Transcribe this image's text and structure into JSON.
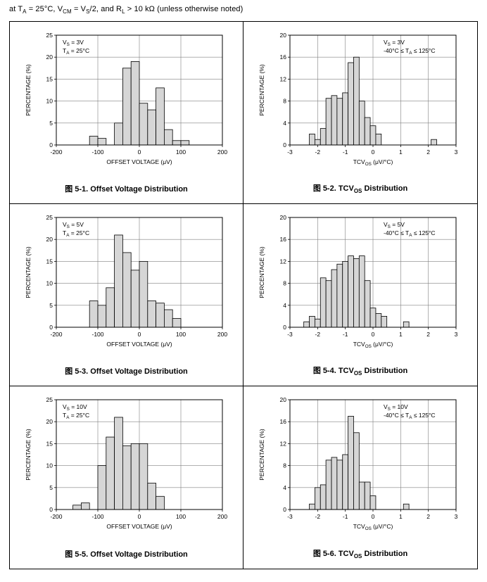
{
  "page": {
    "condition_line": "at T~A~ = 25°C, V~CM~ = V~S~/2, and R~L~ > 10 kΩ (unless otherwise noted)"
  },
  "figure_prefix": "图",
  "chart_data": [
    {
      "type": "bar",
      "title": "5-1. Offset Voltage Distribution",
      "annotation": [
        "V~S~ = 3V",
        "T~A~ = 25°C"
      ],
      "annotation_side": "left",
      "xlabel": "OFFSET VOLTAGE (μV)",
      "ylabel": "PERCENTAGE (%)",
      "xlim": [
        -200,
        200
      ],
      "xticks": [
        -200,
        -100,
        0,
        100,
        200
      ],
      "ylim": [
        0,
        25
      ],
      "yticks": [
        0,
        5,
        10,
        15,
        20,
        25
      ],
      "bin_width": 20,
      "grid": true,
      "bar_fill": "#d6d6d6",
      "bars": [
        [
          -110,
          2
        ],
        [
          -90,
          1.5
        ],
        [
          -50,
          5
        ],
        [
          -30,
          17.5
        ],
        [
          -10,
          19
        ],
        [
          10,
          9.5
        ],
        [
          30,
          8
        ],
        [
          50,
          13
        ],
        [
          70,
          3.5
        ],
        [
          90,
          1
        ],
        [
          110,
          1
        ]
      ]
    },
    {
      "type": "bar",
      "title": "5-2. TCV~OS~ Distribution",
      "annotation": [
        "V~S~ = 3V",
        "-40°C ≤ T~A~ ≤ 125°C"
      ],
      "annotation_side": "right",
      "xlabel": "TCV~OS~ (μV/°C)",
      "ylabel": "PERCENTAGE (%)",
      "xlim": [
        -3,
        3
      ],
      "xticks": [
        -3,
        -2,
        -1,
        0,
        1,
        2,
        3
      ],
      "ylim": [
        0,
        20
      ],
      "yticks": [
        0,
        4,
        8,
        12,
        16,
        20
      ],
      "bin_width": 0.2,
      "grid": true,
      "bar_fill": "#d6d6d6",
      "bars": [
        [
          -2.2,
          2
        ],
        [
          -2.0,
          1
        ],
        [
          -1.8,
          3
        ],
        [
          -1.6,
          8.5
        ],
        [
          -1.4,
          9
        ],
        [
          -1.2,
          8.5
        ],
        [
          -1.0,
          9.5
        ],
        [
          -0.8,
          15
        ],
        [
          -0.6,
          16
        ],
        [
          -0.4,
          8
        ],
        [
          -0.2,
          5
        ],
        [
          0,
          3.5
        ],
        [
          0.2,
          2
        ],
        [
          2.2,
          1
        ]
      ]
    },
    {
      "type": "bar",
      "title": "5-3. Offset Voltage Distribution",
      "annotation": [
        "V~S~ = 5V",
        "T~A~ = 25°C"
      ],
      "annotation_side": "left",
      "xlabel": "OFFSET VOLTAGE (μV)",
      "ylabel": "PERCENTAGE (%)",
      "xlim": [
        -200,
        200
      ],
      "xticks": [
        -200,
        -100,
        0,
        100,
        200
      ],
      "ylim": [
        0,
        25
      ],
      "yticks": [
        0,
        5,
        10,
        15,
        20,
        25
      ],
      "bin_width": 20,
      "grid": true,
      "bar_fill": "#d6d6d6",
      "bars": [
        [
          -110,
          6
        ],
        [
          -90,
          5
        ],
        [
          -70,
          9
        ],
        [
          -50,
          21
        ],
        [
          -30,
          17
        ],
        [
          -10,
          13
        ],
        [
          10,
          15
        ],
        [
          30,
          6
        ],
        [
          50,
          5.5
        ],
        [
          70,
          4
        ],
        [
          90,
          2
        ]
      ]
    },
    {
      "type": "bar",
      "title": "5-4. TCV~OS~ Distribution",
      "annotation": [
        "V~S~ = 5V",
        "-40°C ≤ T~A~ ≤ 125°C"
      ],
      "annotation_side": "right",
      "xlabel": "TCV~OS~ (μV/°C)",
      "ylabel": "PERCENTAGE (%)",
      "xlim": [
        -3,
        3
      ],
      "xticks": [
        -3,
        -2,
        -1,
        0,
        1,
        2,
        3
      ],
      "ylim": [
        0,
        20
      ],
      "yticks": [
        0,
        4,
        8,
        12,
        16,
        20
      ],
      "bin_width": 0.2,
      "grid": true,
      "bar_fill": "#d6d6d6",
      "bars": [
        [
          -2.4,
          1
        ],
        [
          -2.2,
          2
        ],
        [
          -2.0,
          1.5
        ],
        [
          -1.8,
          9
        ],
        [
          -1.6,
          8.5
        ],
        [
          -1.4,
          10.5
        ],
        [
          -1.2,
          11.5
        ],
        [
          -1.0,
          12
        ],
        [
          -0.8,
          13
        ],
        [
          -0.6,
          12.5
        ],
        [
          -0.4,
          13
        ],
        [
          -0.2,
          8.5
        ],
        [
          0,
          3.5
        ],
        [
          0.2,
          2.5
        ],
        [
          0.4,
          2
        ],
        [
          1.2,
          1
        ]
      ]
    },
    {
      "type": "bar",
      "title": "5-5. Offset Voltage Distribution",
      "annotation": [
        "V~S~ = 10V",
        "T~A~ = 25°C"
      ],
      "annotation_side": "left",
      "xlabel": "OFFSET VOLTAGE (μV)",
      "ylabel": "PERCENTAGE (%)",
      "xlim": [
        -200,
        200
      ],
      "xticks": [
        -200,
        -100,
        0,
        100,
        200
      ],
      "ylim": [
        0,
        25
      ],
      "yticks": [
        0,
        5,
        10,
        15,
        20,
        25
      ],
      "bin_width": 20,
      "grid": true,
      "bar_fill": "#d6d6d6",
      "bars": [
        [
          -150,
          1
        ],
        [
          -130,
          1.5
        ],
        [
          -90,
          10
        ],
        [
          -70,
          16.5
        ],
        [
          -50,
          21
        ],
        [
          -30,
          14.5
        ],
        [
          -10,
          15
        ],
        [
          10,
          15
        ],
        [
          30,
          6
        ],
        [
          50,
          3
        ]
      ]
    },
    {
      "type": "bar",
      "title": "5-6. TCV~OS~ Distribution",
      "annotation": [
        "V~S~ = 10V",
        "-40°C ≤ T~A~ ≤ 125°C"
      ],
      "annotation_side": "right",
      "xlabel": "TCV~OS~ (μV/°C)",
      "ylabel": "PERCENTAGE (%)",
      "xlim": [
        -3,
        3
      ],
      "xticks": [
        -3,
        -2,
        -1,
        0,
        1,
        2,
        3
      ],
      "ylim": [
        0,
        20
      ],
      "yticks": [
        0,
        4,
        8,
        12,
        16,
        20
      ],
      "bin_width": 0.2,
      "grid": true,
      "bar_fill": "#d6d6d6",
      "bars": [
        [
          -2.2,
          1
        ],
        [
          -2.0,
          4
        ],
        [
          -1.8,
          4.5
        ],
        [
          -1.6,
          9
        ],
        [
          -1.4,
          9.5
        ],
        [
          -1.2,
          9
        ],
        [
          -1.0,
          10
        ],
        [
          -0.8,
          17
        ],
        [
          -0.6,
          14
        ],
        [
          -0.4,
          5
        ],
        [
          -0.2,
          5
        ],
        [
          0,
          2.5
        ],
        [
          1.2,
          1
        ]
      ]
    }
  ]
}
